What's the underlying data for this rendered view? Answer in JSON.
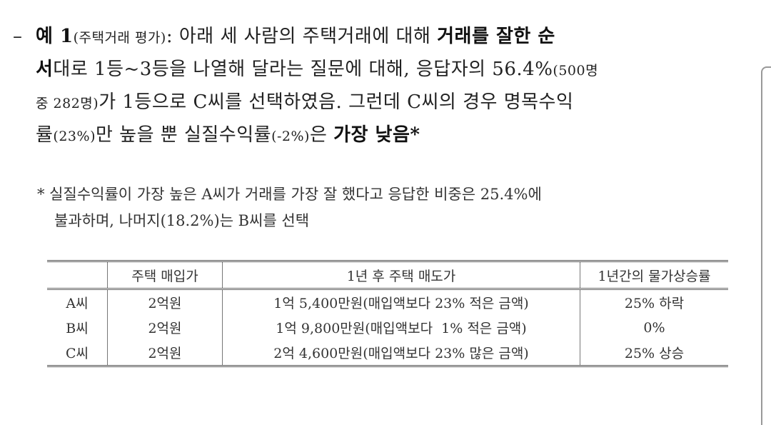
{
  "example": {
    "dash": "–",
    "label": "예 1",
    "topic": "(주택거래 평가)",
    "line1_text": ": 아래 세 사람의 주택거래에 대해 ",
    "line1_bold": "거래를 잘한 순",
    "line2_bold": "서",
    "line2_text": "대로 1등~3등을 나열해 달라는 질문에 대해, 응답자의 56.4%",
    "line2_small": "(500명",
    "line3_small": "중 282명)",
    "line3_text": "가 1등으로 C씨를 선택하였음. 그런데 C씨의 경우 명목수익",
    "line4_a": "률",
    "line4_small1": "(23%)",
    "line4_b": "만 높을 뿐 실질수익률",
    "line4_small2": "(-2%)",
    "line4_c": "은 ",
    "line4_bold": "가장 낮음*"
  },
  "note": {
    "line1": "* 실질수익률이 가장 높은 A씨가 거래를 가장 잘 했다고 응답한 비중은 25.4%에",
    "line2": "불과하며, 나머지(18.2%)는 B씨를 선택"
  },
  "table": {
    "headers": [
      "",
      "주택 매입가",
      "1년 후 주택 매도가",
      "1년간의 물가상승률"
    ],
    "rows": [
      [
        "A씨",
        "2억원",
        "1억 5,400만원(매입액보다 23% 적은 금액)",
        "25% 하락"
      ],
      [
        "B씨",
        "2억원",
        "1억 9,800만원(매입액보다  1% 적은 금액)",
        "0%"
      ],
      [
        "C씨",
        "2억원",
        "2억 4,600만원(매입액보다 23% 많은 금액)",
        "25% 상승"
      ]
    ]
  }
}
